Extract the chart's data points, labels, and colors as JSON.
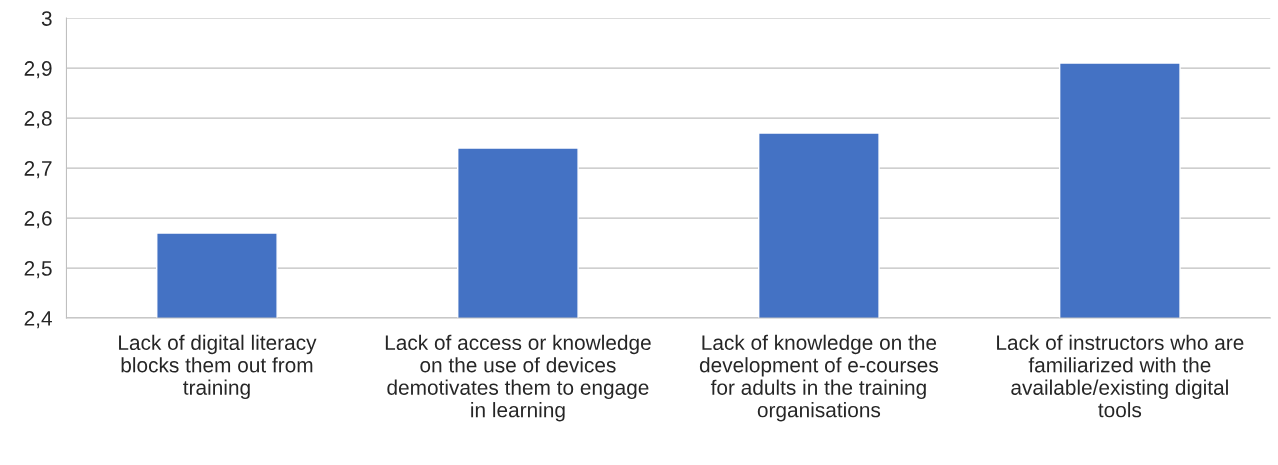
{
  "chart_data": {
    "type": "bar",
    "categories": [
      "Lack of digital literacy blocks them out from training",
      "Lack of access or knowledge on the use of devices demotivates them to engage in learning",
      "Lack of knowledge on the development of e-courses for adults in the training organisations",
      "Lack of instructors who are familiarized with the available/existing digital tools"
    ],
    "values": [
      2.57,
      2.74,
      2.77,
      2.91
    ],
    "color": "#4472c4",
    "ylim": [
      2.4,
      3
    ],
    "yticks": [
      {
        "value": 2.4,
        "label": "2,4"
      },
      {
        "value": 2.5,
        "label": "2,5"
      },
      {
        "value": 2.6,
        "label": "2,6"
      },
      {
        "value": 2.7,
        "label": "2,7"
      },
      {
        "value": 2.8,
        "label": "2,8"
      },
      {
        "value": 2.9,
        "label": "2,9"
      },
      3
    ],
    "grid": "y"
  }
}
